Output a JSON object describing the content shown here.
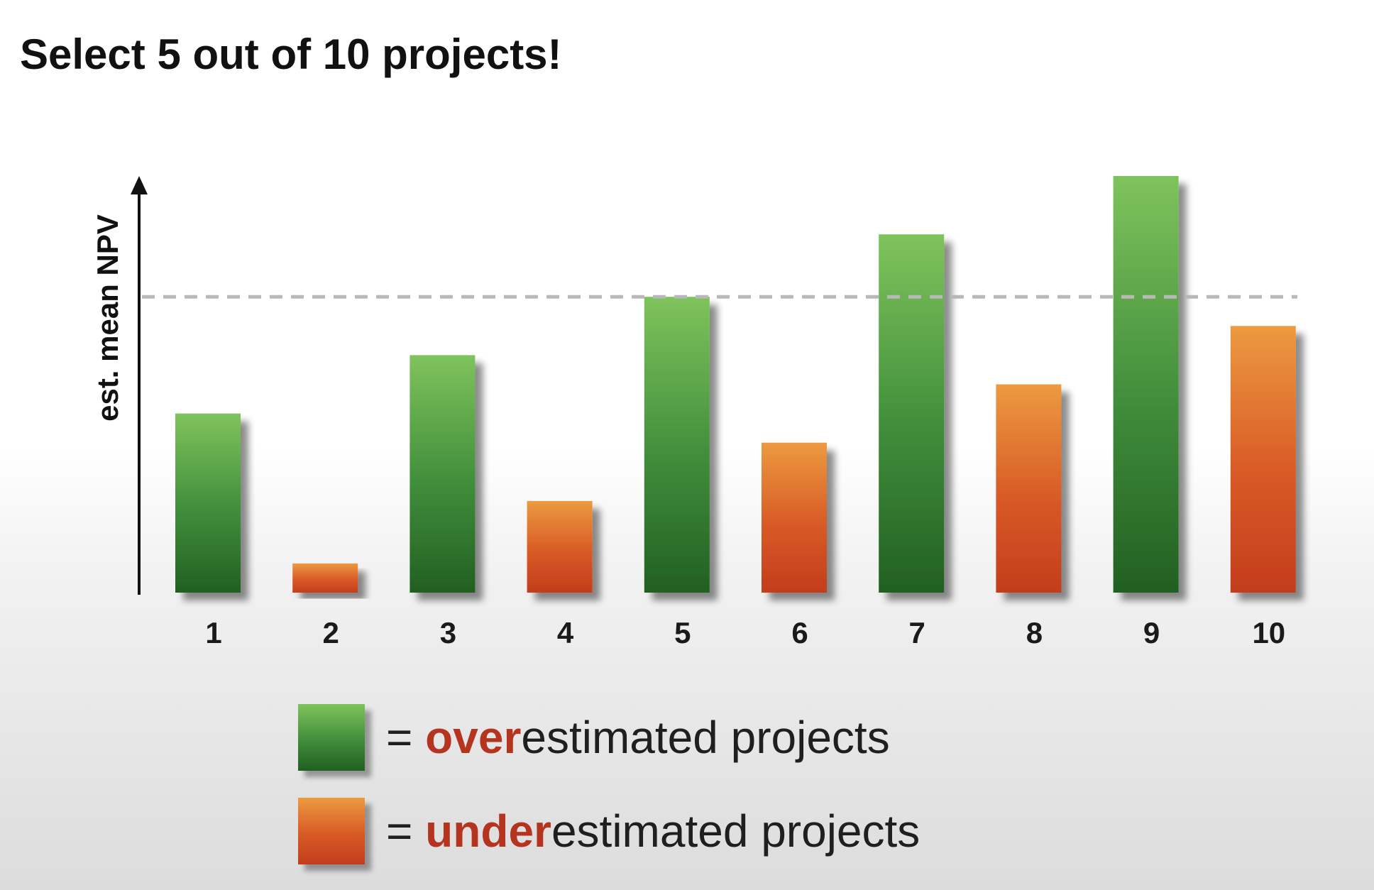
{
  "title": "Select 5 out of 10 projects!",
  "chart_data": {
    "type": "bar",
    "ylabel": "est. mean NPV",
    "xlabel": "",
    "categories": [
      "1",
      "2",
      "3",
      "4",
      "5",
      "6",
      "7",
      "8",
      "9",
      "10"
    ],
    "values": [
      43,
      7,
      57,
      22,
      71,
      36,
      86,
      50,
      100,
      64
    ],
    "groups": [
      "overestimated",
      "underestimated",
      "overestimated",
      "underestimated",
      "overestimated",
      "underestimated",
      "overestimated",
      "underestimated",
      "overestimated",
      "underestimated"
    ],
    "ylim": [
      0,
      100
    ],
    "reference_line": {
      "value": 71,
      "style": "dashed"
    },
    "grid": false,
    "colors": {
      "overestimated": [
        "#7fc35c",
        "#3f8d3a",
        "#225f22"
      ],
      "underestimated": [
        "#ec9a40",
        "#d85a26",
        "#c33d1c"
      ],
      "highlight": "#b5341f",
      "reference_line": "#b8b8b8"
    },
    "legend": {
      "placement": "bottom",
      "entries": [
        {
          "group": "overestimated",
          "prefix": "= ",
          "highlight": "over",
          "rest": "estimated projects"
        },
        {
          "group": "underestimated",
          "prefix": "= ",
          "highlight": "under",
          "rest": "estimated projects"
        }
      ]
    }
  }
}
